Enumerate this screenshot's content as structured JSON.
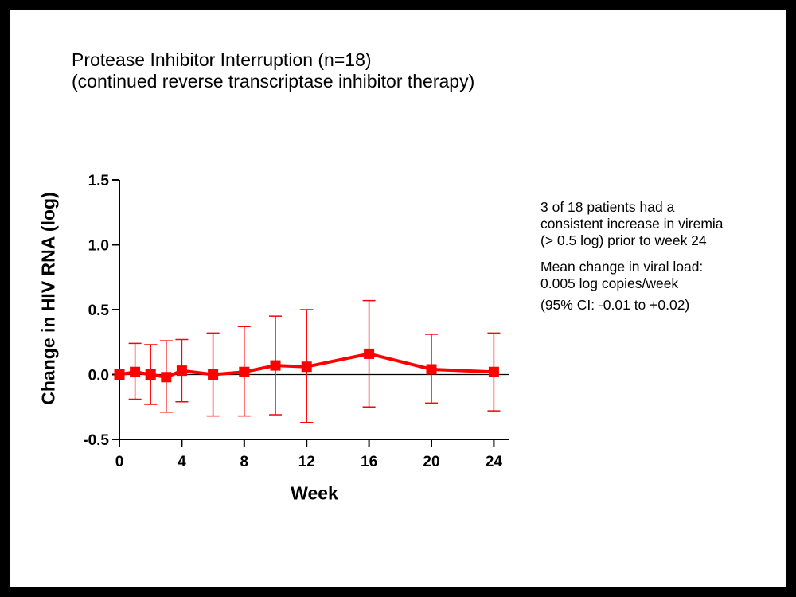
{
  "title_lines": [
    "Protease Inhibitor Interruption (n=18)",
    "(continued reverse transcriptase inhibitor therapy)"
  ],
  "annotations": {
    "patients_line1": "3 of 18 patients had a",
    "patients_line2": "consistent increase in viremia",
    "patients_line3": "(> 0.5 log) prior to week 24",
    "mean_line1": "Mean change in viral load:",
    "mean_line2": "0.005 log copies/week",
    "ci_line": "(95% CI: -0.01 to +0.02)"
  },
  "colors": {
    "series": "#ff0000",
    "frame": "#000000",
    "background": "#ffffff"
  },
  "chart_data": {
    "type": "line",
    "xlabel": "Week",
    "ylabel": "Change in HIV RNA (log)",
    "xlim": [
      0,
      25
    ],
    "ylim": [
      -0.5,
      1.5
    ],
    "xticks": [
      0,
      4,
      8,
      12,
      16,
      20,
      24
    ],
    "yticks": [
      -0.5,
      0.0,
      0.5,
      1.0,
      1.5
    ],
    "ytick_labels": [
      "-0.5",
      "0.0",
      "0.5",
      "1.0",
      "1.5"
    ],
    "zero_reference_line": true,
    "grid": false,
    "legend": "none",
    "series": [
      {
        "marker": "square",
        "x": [
          0,
          1,
          2,
          3,
          4,
          6,
          8,
          10,
          12,
          16,
          20,
          24
        ],
        "y": [
          0.0,
          0.02,
          0.0,
          -0.02,
          0.03,
          0.0,
          0.02,
          0.07,
          0.06,
          0.16,
          0.04,
          0.02
        ],
        "upper": [
          0.0,
          0.24,
          0.23,
          0.26,
          0.27,
          0.32,
          0.37,
          0.45,
          0.5,
          0.57,
          0.31,
          0.32
        ],
        "lower": [
          0.0,
          -0.19,
          -0.23,
          -0.29,
          -0.21,
          -0.32,
          -0.32,
          -0.31,
          -0.37,
          -0.25,
          -0.22,
          -0.28
        ]
      }
    ]
  }
}
